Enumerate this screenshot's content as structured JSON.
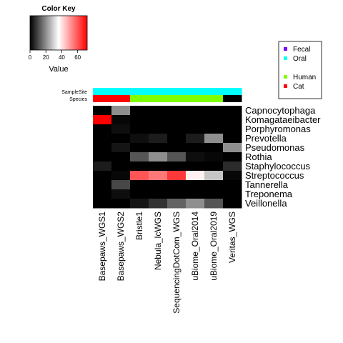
{
  "chart_data": {
    "type": "heatmap",
    "color_key": {
      "title": "Color Key",
      "xlabel": "Value",
      "ticks": [
        "0",
        "20",
        "40",
        "60"
      ],
      "range": [
        0,
        72
      ],
      "colors": [
        "#000000",
        "#ffffff",
        "#ff0000"
      ]
    },
    "annotation_rows": [
      {
        "label": "SampleSite",
        "colors": [
          "#00ffff",
          "#00ffff",
          "#00ffff",
          "#00ffff",
          "#00ffff",
          "#00ffff",
          "#00ffff",
          "#00ffff"
        ]
      },
      {
        "label": "Species",
        "colors": [
          "#ff0000",
          "#ff0000",
          "#7fff00",
          "#7fff00",
          "#7fff00",
          "#7fff00",
          "#7fff00",
          "#000000"
        ]
      }
    ],
    "rows": [
      "Capnocytophaga",
      "Komagataeibacter",
      "Porphyromonas",
      "Prevotella",
      "Pseudomonas",
      "Rothia",
      "Staphylococcus",
      "Streptococcus",
      "Tannerella",
      "Treponema",
      "Veillonella"
    ],
    "columns": [
      "Basepaws_WGS1",
      "Basepaws_WGS2",
      "Bristle1",
      "Nebula_lcWGS",
      "SequencingDotCom_WGS",
      "uBiome_Oral2014",
      "uBiome_Oral2019",
      "Veritas_WGS"
    ],
    "values": [
      [
        0,
        20,
        0,
        0,
        0,
        0,
        0,
        0
      ],
      [
        72,
        1,
        0,
        0,
        0,
        0,
        0,
        0
      ],
      [
        0,
        2,
        0,
        0,
        0,
        0,
        0,
        0
      ],
      [
        0,
        0,
        2,
        4,
        0,
        4,
        20,
        0
      ],
      [
        0,
        3,
        0,
        0,
        0,
        0,
        0,
        20
      ],
      [
        0,
        0,
        12,
        20,
        12,
        2,
        1,
        0
      ],
      [
        4,
        0,
        0,
        0,
        0,
        0,
        0,
        6
      ],
      [
        0,
        1,
        60,
        55,
        64,
        38,
        28,
        1
      ],
      [
        0,
        10,
        0,
        0,
        0,
        0,
        0,
        0
      ],
      [
        0,
        2,
        0,
        0,
        0,
        0,
        0,
        0
      ],
      [
        0,
        0,
        3,
        7,
        14,
        20,
        12,
        0
      ]
    ],
    "legend": {
      "position": "top-right",
      "items": [
        {
          "label": "Fecal",
          "color": "#7f00ff"
        },
        {
          "label": "Oral",
          "color": "#00ffff"
        },
        {
          "label": "",
          "color": ""
        },
        {
          "label": "Human",
          "color": "#7fff00"
        },
        {
          "label": "Cat",
          "color": "#ff0000"
        }
      ]
    }
  }
}
